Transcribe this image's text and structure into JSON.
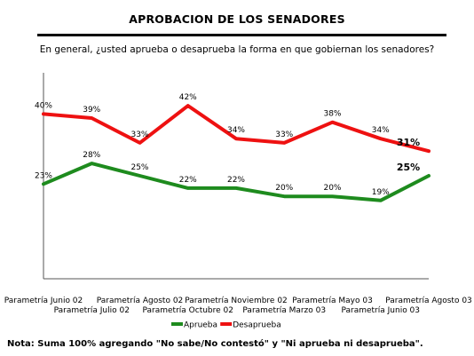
{
  "header": {
    "title": "APROBACION DE LOS SENADORES",
    "subtitle": "En general, ¿usted aprueba o desaprueba la forma en que gobiernan los senadores?"
  },
  "note": "Nota: Suma 100% agregando  \"No sabe/No contestó\" y \"Ni aprueba ni desaprueba\".",
  "colors": {
    "aprueba": "#1e8b1e",
    "desaprueba": "#ee1111"
  },
  "chart_data": {
    "type": "line",
    "title": "APROBACION DE LOS SENADORES",
    "subtitle": "En general, ¿usted aprueba o desaprueba la forma en que gobiernan los senadores?",
    "categories": [
      "Parametría Junio 02",
      "Parametría Julio 02",
      "Parametría Agosto 02",
      "Parametría Octubre 02",
      "Parametría Noviembre 02",
      "Parametría Marzo 03",
      "Parametría Mayo 03",
      "Parametría Junio 03",
      "Parametría Agosto 03"
    ],
    "series": [
      {
        "name": "Aprueba",
        "values": [
          23,
          28,
          25,
          22,
          22,
          20,
          20,
          19,
          25
        ],
        "labels": [
          "23%",
          "28%",
          "25%",
          "22%",
          "22%",
          "20%",
          "20%",
          "19%",
          "25%"
        ]
      },
      {
        "name": "Desaprueba",
        "values": [
          40,
          39,
          33,
          42,
          34,
          33,
          38,
          34,
          31
        ],
        "labels": [
          "40%",
          "39%",
          "33%",
          "42%",
          "34%",
          "33%",
          "38%",
          "34%",
          "31%"
        ]
      }
    ],
    "ylim": [
      0,
      50
    ],
    "grid": false,
    "legend": "bottom"
  }
}
